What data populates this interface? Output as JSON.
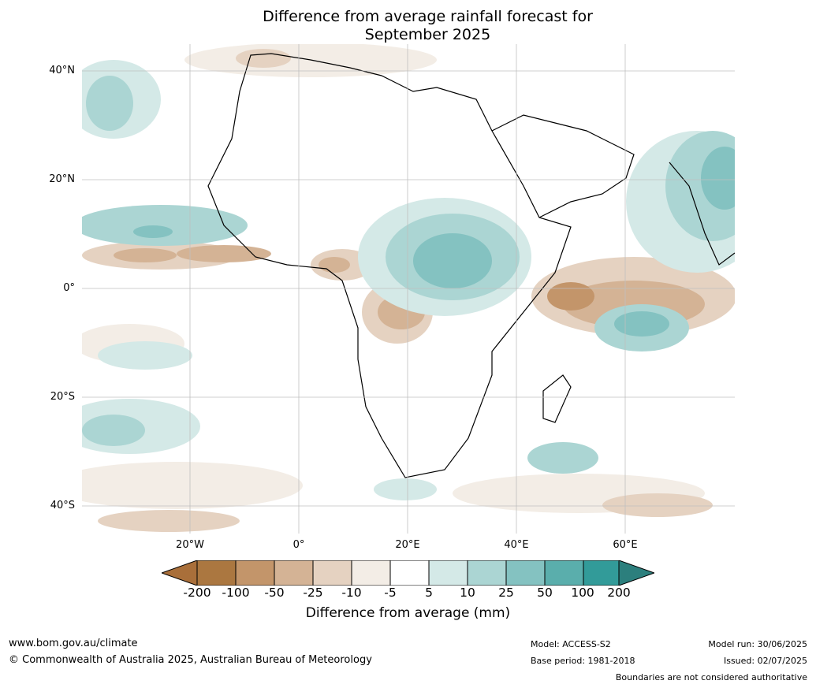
{
  "title": [
    "Difference from average rainfall forecast for",
    "September 2025"
  ],
  "lat_labels": [
    "40°N",
    "20°N",
    "0°",
    "20°S",
    "40°S"
  ],
  "lon_labels": [
    "20°W",
    "0°",
    "20°E",
    "40°E",
    "60°E"
  ],
  "colorbar": {
    "label": "Difference from average (mm)",
    "ticks": [
      "-200",
      "-100",
      "-50",
      "-25",
      "-10",
      "-5",
      "5",
      "10",
      "25",
      "50",
      "100",
      "200"
    ],
    "colors": [
      "#a96f3a",
      "#ab7740",
      "#c3956a",
      "#d4b395",
      "#e5d2c1",
      "#f3ede6",
      "#ffffff",
      "#d4e9e7",
      "#abd5d3",
      "#84c2c1",
      "#5aaeac",
      "#329b99",
      "#2c7f7d"
    ]
  },
  "footer": {
    "website": "www.bom.gov.au/climate",
    "copyright": "© Commonwealth of Australia 2025, Australian Bureau of Meteorology",
    "model": "Model: ACCESS-S2",
    "base_period": "Base period: 1981-2018",
    "model_run": "Model run: 30/06/2025",
    "issued": "Issued: 02/07/2025",
    "disclaimer": "Boundaries are not considered authoritative"
  }
}
